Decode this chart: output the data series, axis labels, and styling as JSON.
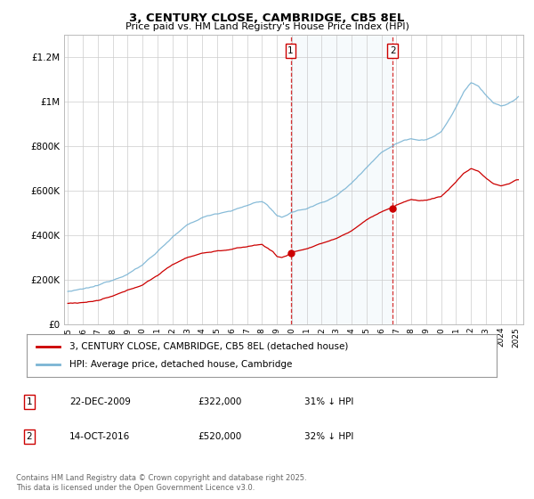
{
  "title": "3, CENTURY CLOSE, CAMBRIDGE, CB5 8EL",
  "subtitle": "Price paid vs. HM Land Registry's House Price Index (HPI)",
  "ylim": [
    0,
    1300000
  ],
  "yticks": [
    0,
    200000,
    400000,
    600000,
    800000,
    1000000,
    1200000
  ],
  "ytick_labels": [
    "£0",
    "£200K",
    "£400K",
    "£600K",
    "£800K",
    "£1M",
    "£1.2M"
  ],
  "hpi_color": "#7ab4d4",
  "price_color": "#cc0000",
  "dashed_color": "#cc0000",
  "span_color": "#ddeeff",
  "sale1_month": 179,
  "sale2_month": 261,
  "sale1_date": "22-DEC-2009",
  "sale1_price": 322000,
  "sale1_pct": "31%",
  "sale2_date": "14-OCT-2016",
  "sale2_price": 520000,
  "sale2_pct": "32%",
  "legend_label1": "3, CENTURY CLOSE, CAMBRIDGE, CB5 8EL (detached house)",
  "legend_label2": "HPI: Average price, detached house, Cambridge",
  "footer": "Contains HM Land Registry data © Crown copyright and database right 2025.\nThis data is licensed under the Open Government Licence v3.0.",
  "background_color": "#ffffff",
  "grid_color": "#cccccc",
  "start_year": 1995,
  "end_year": 2025,
  "n_months": 363
}
